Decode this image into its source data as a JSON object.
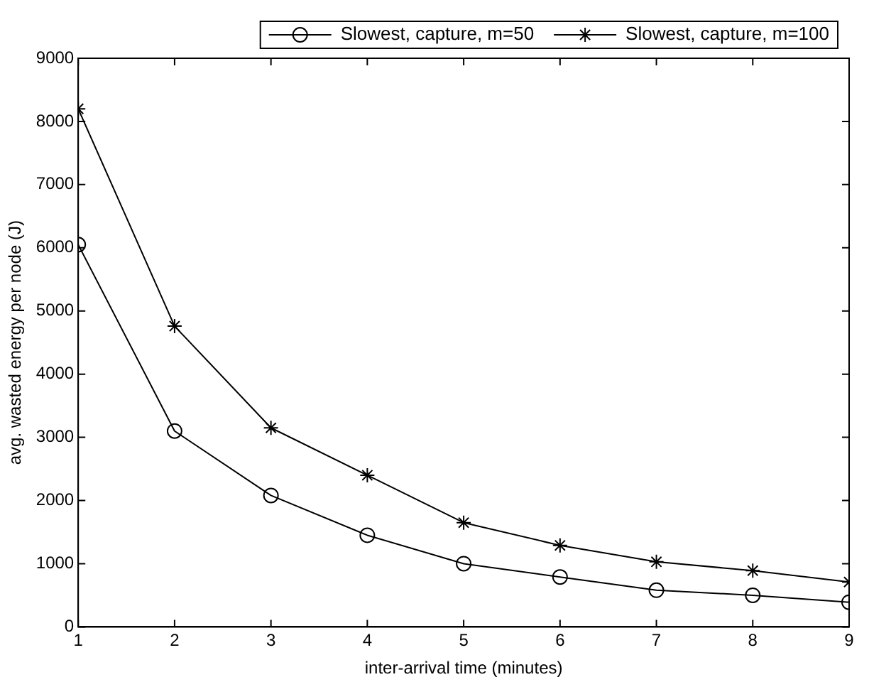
{
  "chart_data": {
    "type": "line",
    "xlabel": "inter-arrival time (minutes)",
    "ylabel": "avg. wasted energy per node (J)",
    "x": [
      1,
      2,
      3,
      4,
      5,
      6,
      7,
      8,
      9
    ],
    "series": [
      {
        "name": "Slowest, capture, m=50",
        "color": "#000000",
        "marker": "circle",
        "values": [
          6050,
          3100,
          2080,
          1450,
          1000,
          790,
          580,
          500,
          390
        ]
      },
      {
        "name": "Slowest, capture, m=100",
        "color": "#000000",
        "marker": "cross",
        "values": [
          8200,
          4760,
          3150,
          2400,
          1650,
          1290,
          1030,
          890,
          710
        ]
      }
    ],
    "xlim": [
      1,
      9
    ],
    "xticks": [
      1,
      2,
      3,
      4,
      5,
      6,
      7,
      8,
      9
    ],
    "ylim": [
      0,
      9000
    ],
    "yticks": [
      0,
      1000,
      2000,
      3000,
      4000,
      5000,
      6000,
      7000,
      8000,
      9000
    ],
    "grid": false,
    "legend": "top right",
    "line_style": "solid"
  }
}
